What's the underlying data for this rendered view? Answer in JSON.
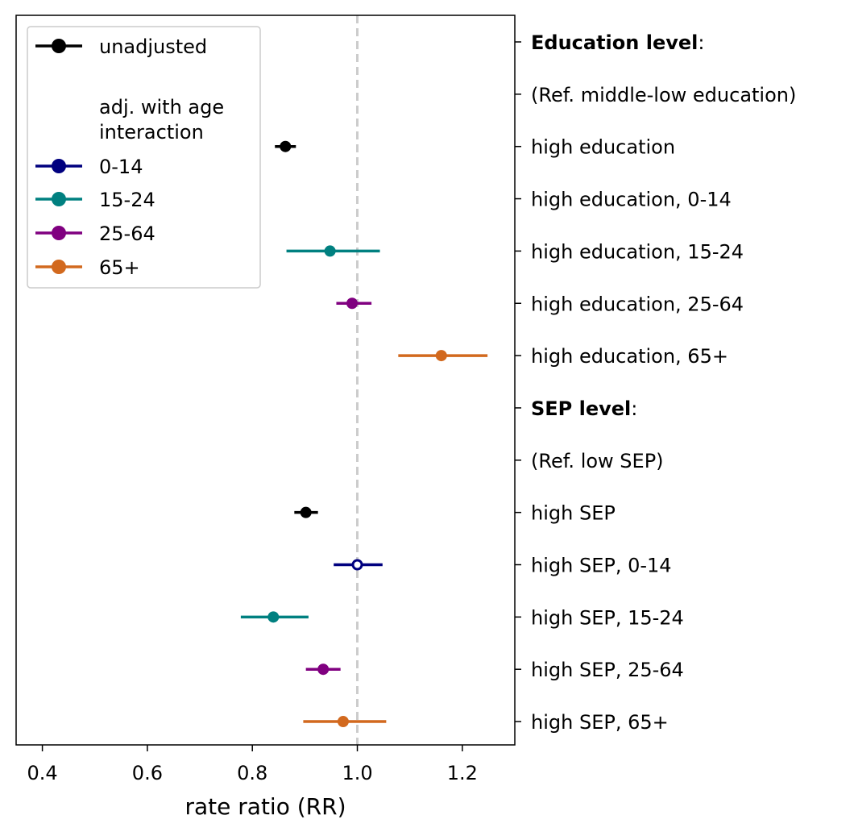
{
  "chart_data": {
    "type": "scatter",
    "subtype": "forest-plot",
    "title": "",
    "xlabel": "rate ratio (RR)",
    "ylabel": "",
    "xlim": [
      0.35,
      1.3
    ],
    "xticks": [
      0.4,
      0.6,
      0.8,
      1.0,
      1.2
    ],
    "xtick_labels": [
      "0.4",
      "0.6",
      "0.8",
      "1.0",
      "1.2"
    ],
    "reference_line": {
      "x": 1.0,
      "style": "dashed",
      "color": "#cccccc"
    },
    "grid": false,
    "legend": {
      "position": "top-left",
      "items": [
        {
          "label": "unadjusted",
          "color": "#000000",
          "marker": true
        },
        {
          "label": "adj. with age interaction",
          "color": "",
          "marker": false
        },
        {
          "label": "0-14",
          "color": "#00007f",
          "marker": true
        },
        {
          "label": "15-24",
          "color": "#008080",
          "marker": true
        },
        {
          "label": "25-64",
          "color": "#800080",
          "marker": true
        },
        {
          "label": "65+",
          "color": "#d2691e",
          "marker": true
        }
      ]
    },
    "rows": [
      {
        "label": "Education level",
        "suffix": ":",
        "bold": true,
        "series": null
      },
      {
        "label": "(Ref. middle-low education)",
        "suffix": "",
        "bold": false,
        "series": null
      },
      {
        "label": "high education",
        "suffix": "",
        "bold": false,
        "series": "unadjusted",
        "estimate": 0.863,
        "ci": [
          0.843,
          0.883
        ]
      },
      {
        "label": "high education, 0-14",
        "suffix": "",
        "bold": false,
        "series": "0-14",
        "estimate": null,
        "ci": null
      },
      {
        "label": "high education, 15-24",
        "suffix": "",
        "bold": false,
        "series": "15-24",
        "estimate": 0.948,
        "ci": [
          0.865,
          1.043
        ]
      },
      {
        "label": "high education, 25-64",
        "suffix": "",
        "bold": false,
        "series": "25-64",
        "estimate": 0.99,
        "ci": [
          0.96,
          1.027
        ]
      },
      {
        "label": "high education, 65+",
        "suffix": "",
        "bold": false,
        "series": "65+",
        "estimate": 1.16,
        "ci": [
          1.078,
          1.248
        ]
      },
      {
        "label": "SEP level",
        "suffix": ":",
        "bold": true,
        "series": null
      },
      {
        "label": "(Ref. low SEP)",
        "suffix": "",
        "bold": false,
        "series": null
      },
      {
        "label": "high SEP",
        "suffix": "",
        "bold": false,
        "series": "unadjusted",
        "estimate": 0.902,
        "ci": [
          0.88,
          0.925
        ]
      },
      {
        "label": "high SEP, 0-14",
        "suffix": "",
        "bold": false,
        "series": "0-14",
        "estimate": 1.0,
        "ci": [
          0.955,
          1.048
        ],
        "hollow": true
      },
      {
        "label": "high SEP, 15-24",
        "suffix": "",
        "bold": false,
        "series": "15-24",
        "estimate": 0.84,
        "ci": [
          0.778,
          0.907
        ]
      },
      {
        "label": "high SEP, 25-64",
        "suffix": "",
        "bold": false,
        "series": "25-64",
        "estimate": 0.935,
        "ci": [
          0.902,
          0.968
        ]
      },
      {
        "label": "high SEP, 65+",
        "suffix": "",
        "bold": false,
        "series": "65+",
        "estimate": 0.973,
        "ci": [
          0.897,
          1.055
        ]
      }
    ]
  }
}
